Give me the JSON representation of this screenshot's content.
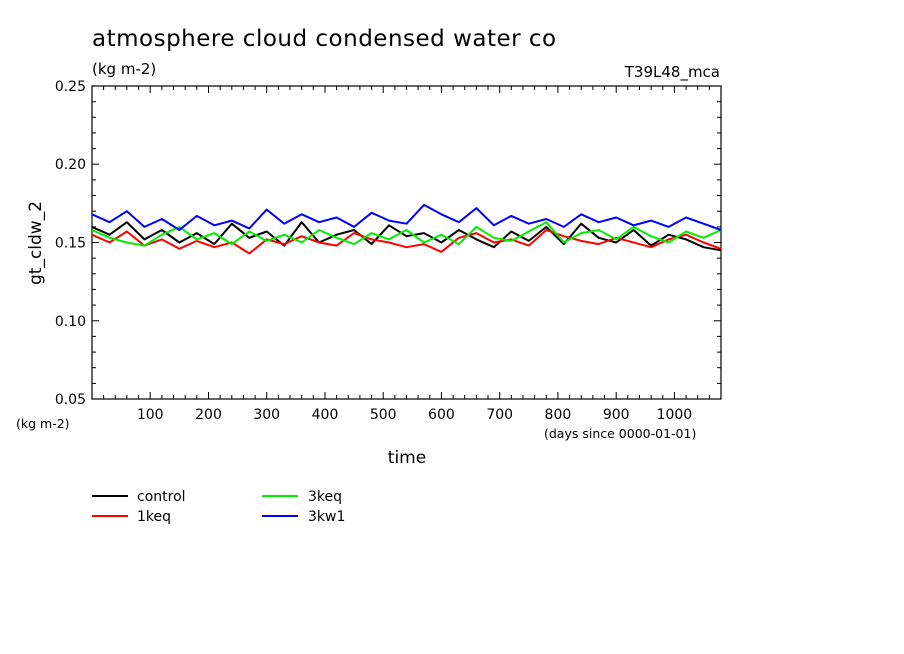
{
  "chart_data": {
    "type": "line",
    "title": "atmosphere cloud condensed water co",
    "subtitle": "(kg m-2)",
    "run_label": "T39L48_mca",
    "ylabel": "gt_cldw_2",
    "y_unit_label": "(kg m-2)",
    "xlabel": "time",
    "x_unit_label": "(days since 0000-01-01)",
    "xlim": [
      0,
      1080
    ],
    "ylim": [
      0.05,
      0.25
    ],
    "x_ticks": [
      100,
      200,
      300,
      400,
      500,
      600,
      700,
      800,
      900,
      1000
    ],
    "y_ticks": [
      0.05,
      0.1,
      0.15,
      0.2,
      0.25
    ],
    "y_tick_labels": [
      "0.05",
      "0.10",
      "0.15",
      "0.20",
      "0.25"
    ],
    "grid": false,
    "legend_position": "bottom-left",
    "x": [
      0,
      30,
      60,
      90,
      120,
      150,
      180,
      210,
      240,
      270,
      300,
      330,
      360,
      390,
      420,
      450,
      480,
      510,
      540,
      570,
      600,
      630,
      660,
      690,
      720,
      750,
      780,
      810,
      840,
      870,
      900,
      930,
      960,
      990,
      1020,
      1050,
      1080
    ],
    "series": [
      {
        "name": "control",
        "color": "#000000",
        "values": [
          0.16,
          0.155,
          0.163,
          0.152,
          0.158,
          0.15,
          0.156,
          0.149,
          0.162,
          0.153,
          0.157,
          0.148,
          0.163,
          0.15,
          0.155,
          0.158,
          0.149,
          0.161,
          0.154,
          0.156,
          0.15,
          0.158,
          0.152,
          0.147,
          0.157,
          0.151,
          0.16,
          0.149,
          0.162,
          0.153,
          0.15,
          0.158,
          0.148,
          0.155,
          0.152,
          0.147,
          0.145
        ]
      },
      {
        "name": "1keq",
        "color": "#ff0000",
        "values": [
          0.155,
          0.15,
          0.157,
          0.148,
          0.152,
          0.146,
          0.151,
          0.147,
          0.15,
          0.143,
          0.152,
          0.149,
          0.154,
          0.15,
          0.148,
          0.156,
          0.152,
          0.15,
          0.147,
          0.149,
          0.144,
          0.153,
          0.156,
          0.15,
          0.152,
          0.148,
          0.158,
          0.154,
          0.151,
          0.149,
          0.153,
          0.15,
          0.147,
          0.152,
          0.155,
          0.15,
          0.146
        ]
      },
      {
        "name": "3keq",
        "color": "#00ee00",
        "values": [
          0.158,
          0.153,
          0.15,
          0.148,
          0.155,
          0.16,
          0.152,
          0.156,
          0.149,
          0.157,
          0.151,
          0.155,
          0.15,
          0.158,
          0.153,
          0.149,
          0.156,
          0.152,
          0.158,
          0.15,
          0.155,
          0.149,
          0.16,
          0.153,
          0.151,
          0.157,
          0.163,
          0.15,
          0.156,
          0.158,
          0.152,
          0.16,
          0.154,
          0.15,
          0.157,
          0.153,
          0.158
        ]
      },
      {
        "name": "3kw1",
        "color": "#0000ff",
        "values": [
          0.168,
          0.163,
          0.17,
          0.16,
          0.165,
          0.158,
          0.167,
          0.161,
          0.164,
          0.159,
          0.171,
          0.162,
          0.168,
          0.163,
          0.166,
          0.16,
          0.169,
          0.164,
          0.162,
          0.174,
          0.168,
          0.163,
          0.172,
          0.161,
          0.167,
          0.162,
          0.165,
          0.16,
          0.168,
          0.163,
          0.166,
          0.161,
          0.164,
          0.16,
          0.166,
          0.162,
          0.158
        ]
      }
    ]
  }
}
